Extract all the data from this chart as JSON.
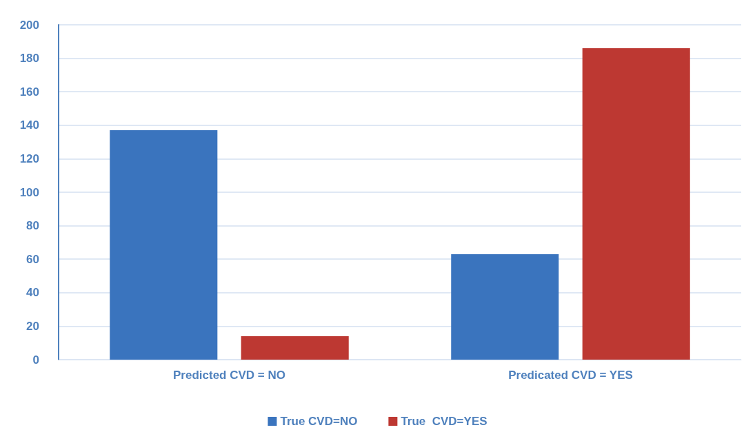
{
  "chart_data": {
    "type": "bar",
    "categories": [
      "Predicted CVD = NO",
      "Predicated CVD = YES"
    ],
    "series": [
      {
        "name": "True CVD=NO",
        "color": "#3a74be",
        "values": [
          137,
          63
        ]
      },
      {
        "name": "True  CVD=YES",
        "color": "#bd3832",
        "values": [
          14,
          186
        ]
      }
    ],
    "ylim": [
      0,
      200
    ],
    "yticks": [
      0,
      20,
      40,
      60,
      80,
      100,
      120,
      140,
      160,
      180,
      200
    ],
    "grid": "y",
    "legend": "bottom"
  }
}
